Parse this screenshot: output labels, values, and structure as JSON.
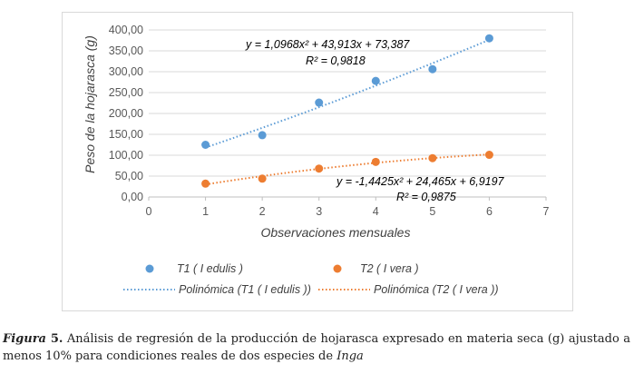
{
  "chart_data": {
    "type": "scatter",
    "xlabel": "Observaciones mensuales",
    "ylabel": "Peso de la hojarasca (g)",
    "xlim": [
      0,
      7
    ],
    "ylim": [
      0,
      400
    ],
    "x_ticks": [
      "0",
      "1",
      "2",
      "3",
      "4",
      "5",
      "6",
      "7"
    ],
    "y_ticks": [
      "0,00",
      "50,00",
      "100,00",
      "150,00",
      "200,00",
      "250,00",
      "300,00",
      "350,00",
      "400,00"
    ],
    "grid": "horizontal",
    "legend_position": "bottom",
    "series": [
      {
        "name": "T1 ( I edulis )",
        "color": "#5b9bd5",
        "x": [
          1,
          2,
          3,
          4,
          5,
          6
        ],
        "y": [
          125,
          148,
          226,
          278,
          306,
          380
        ],
        "trendline": {
          "name": "Polinómica (T1 ( I edulis ))",
          "type": "polynomial",
          "coefficients": [
            1.0968,
            43.913,
            73.387
          ],
          "equation": "y = 1,0968x² + 43,913x + 73,387",
          "r2": "R² = 0,9818"
        }
      },
      {
        "name": "T2 ( I vera )",
        "color": "#ed7d31",
        "x": [
          1,
          2,
          3,
          4,
          5,
          6
        ],
        "y": [
          32,
          44,
          68,
          84,
          93,
          101
        ],
        "trendline": {
          "name": "Polinómica (T2 ( I vera ))",
          "type": "polynomial",
          "coefficients": [
            -1.4425,
            24.465,
            6.9197
          ],
          "equation": "y = -1,4425x² + 24,465x + 6,9197",
          "r2": "R² = 0,9875"
        }
      }
    ]
  },
  "caption": {
    "label": "Figura",
    "number": " 5.",
    "text": " Análisis de regresión de la producción de hojarasca expresado en materia seca (g) ajustado a menos 10% para condiciones reales de dos especies de ",
    "italic_end": "Inga"
  }
}
